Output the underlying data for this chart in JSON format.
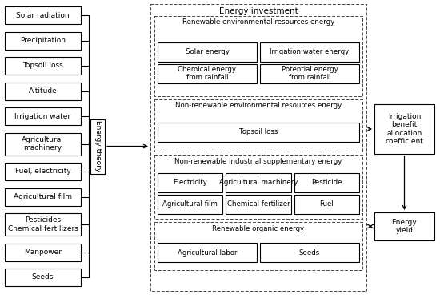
{
  "left_boxes": [
    "Solar radiation",
    "Precipitation",
    "Topsoil loss",
    "Altitude",
    "Irrigation water",
    "Agricultural\nmachinery",
    "Fuel, electricity",
    "Agricultural film",
    "Pesticides\nChemical fertilizers",
    "Manpower",
    "Seeds"
  ],
  "energy_theory_label": "Energy theory",
  "main_outer_label": "Energy investment",
  "sections": [
    {
      "label": "Renewable environmental resources energy",
      "boxes": [
        [
          "Solar energy",
          "Irrigation water energy"
        ],
        [
          "Chemical energy\nfrom rainfall",
          "Potential energy\nfrom rainfall"
        ]
      ]
    },
    {
      "label": "Non-renewable environmental resources energy",
      "boxes": [
        [
          "Topsoil loss"
        ]
      ]
    },
    {
      "label": "Non-renewable industrial supplementary energy",
      "boxes": [
        [
          "Electricity",
          "Agricultural machinery",
          "Pesticide"
        ],
        [
          "Agricultural film",
          "Chemical fertilizer",
          "Fuel"
        ]
      ]
    },
    {
      "label": "Renewable organic energy",
      "boxes": [
        [
          "Agricultural labor",
          "Seeds"
        ]
      ]
    }
  ],
  "right_box1": "Irrigation\nbenefit\nallocation\ncoefficient",
  "right_box2": "Energy\nyield",
  "bg_color": "#ffffff"
}
